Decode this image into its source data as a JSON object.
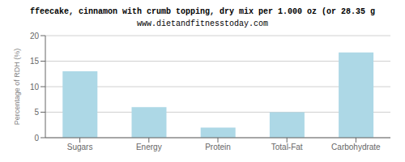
{
  "chart_data": {
    "type": "bar",
    "title": "ffeecake, cinnamon with crumb topping, dry mix per 1.000 oz (or 28.35 g",
    "subtitle": "www.dietandfitnesstoday.com",
    "categories": [
      "Sugars",
      "Energy",
      "Protein",
      "Total-Fat",
      "Carbohydrate"
    ],
    "values": [
      13.0,
      6.0,
      2.0,
      5.0,
      16.7
    ],
    "color": "#add8e6",
    "ylabel": "Percentage of RDH (%)",
    "ylim": [
      0,
      20
    ],
    "yticks": [
      0,
      5,
      10,
      15,
      20
    ],
    "grid": true
  }
}
